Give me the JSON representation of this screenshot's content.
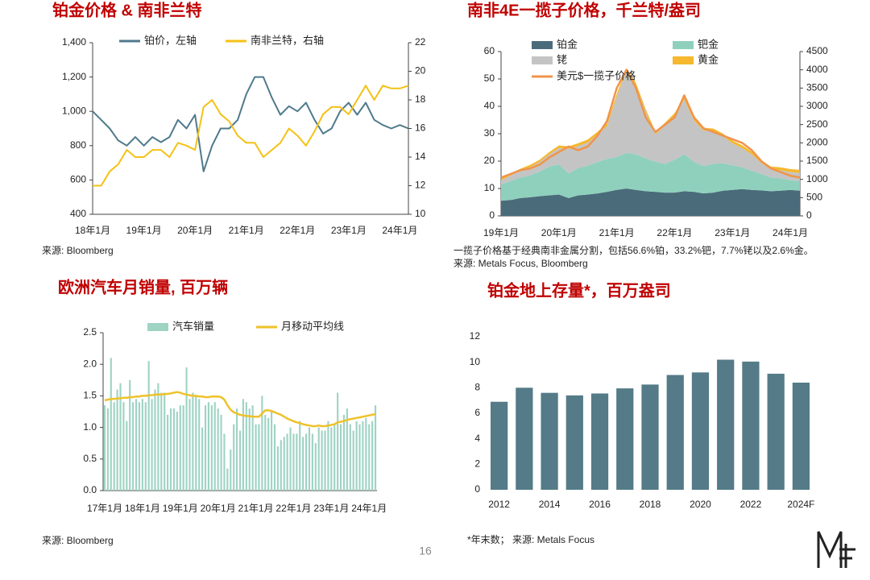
{
  "page": "16",
  "chart_data": [
    {
      "type": "line",
      "title": "铂金价格 & 南非兰特",
      "source": "来源: Bloomberg",
      "categories": [
        "18年1月",
        null,
        null,
        null,
        null,
        null,
        "19年1月",
        null,
        null,
        null,
        null,
        null,
        "20年1月",
        null,
        null,
        null,
        null,
        null,
        "21年1月",
        null,
        null,
        null,
        null,
        null,
        "22年1月",
        null,
        null,
        null,
        null,
        null,
        "23年1月",
        null,
        null,
        null,
        null,
        null,
        "24年1月",
        null
      ],
      "series": [
        {
          "name": "铂价，左轴",
          "color": "#4f7a8c",
          "values": [
            1000,
            950,
            900,
            830,
            800,
            850,
            800,
            850,
            820,
            850,
            950,
            900,
            980,
            650,
            800,
            900,
            900,
            950,
            1100,
            1200,
            1200,
            1080,
            980,
            1030,
            1000,
            1050,
            950,
            870,
            900,
            1000,
            1050,
            980,
            1050,
            950,
            920,
            900,
            920,
            900
          ]
        },
        {
          "name": "南非兰特，右轴",
          "color": "#f5c116",
          "axis": "y2",
          "values": [
            12,
            12,
            13,
            13.5,
            14.5,
            14,
            14,
            14.5,
            14.5,
            14,
            15,
            14.8,
            14.5,
            17.5,
            18,
            17,
            16.5,
            15.5,
            15,
            15,
            14,
            14.5,
            15,
            16,
            15.5,
            14.8,
            15.8,
            17,
            17.5,
            17.5,
            17,
            18,
            19,
            18,
            19,
            18.8,
            18.8,
            19
          ]
        }
      ],
      "ylim": [
        400,
        1400
      ],
      "yticks": [
        400,
        600,
        800,
        {
          "value": 1000,
          "label": "1,000"
        },
        {
          "value": 1200,
          "label": "1,200"
        },
        {
          "value": 1400,
          "label": "1,400"
        }
      ],
      "y2lim": [
        10,
        22
      ],
      "y2ticks": [
        10,
        12,
        14,
        16,
        18,
        20,
        22
      ]
    },
    {
      "type": "area",
      "title": "南非4E一揽子价格，千兰特/盎司",
      "note": "一揽子价格基于经典南非金属分割，包括56.6%铂，33.2%钯，7.7%铑以及2.6%金。",
      "source": "来源: Metals Focus, Bloomberg",
      "categories": [
        "19年1月",
        null,
        null,
        null,
        null,
        null,
        "20年1月",
        null,
        null,
        null,
        null,
        null,
        "21年1月",
        null,
        null,
        null,
        null,
        null,
        "22年1月",
        null,
        null,
        null,
        null,
        null,
        "23年1月",
        null,
        null,
        null,
        null,
        null,
        "24年1月",
        null
      ],
      "series": [
        {
          "name": "铂金",
          "color": "#4a6b7a",
          "values": [
            5.5,
            5.8,
            6.5,
            6.8,
            7.2,
            7.5,
            7.8,
            6.5,
            7.5,
            7.8,
            8.2,
            8.8,
            9.5,
            10,
            9.5,
            9,
            8.8,
            8.5,
            8.5,
            9,
            8.8,
            8.2,
            8.5,
            9.2,
            9.5,
            9.8,
            9.5,
            9.3,
            9,
            9.2,
            9.5,
            9.2
          ]
        },
        {
          "name": "钯金",
          "color": "#8fd0bd",
          "values": [
            6,
            7,
            7.5,
            8,
            9,
            10.5,
            11,
            9,
            10,
            10.5,
            11.5,
            12,
            12,
            13,
            13,
            12,
            11,
            10.5,
            12,
            13.5,
            11,
            10,
            10.5,
            10,
            9,
            8,
            7,
            6,
            5,
            4.5,
            3.5,
            3.5
          ]
        },
        {
          "name": "铑",
          "color": "#c4c4c4",
          "values": [
            1.5,
            2,
            2.5,
            3,
            3.5,
            4.5,
            6,
            9,
            8,
            8.5,
            10,
            12,
            22,
            30,
            25,
            17,
            10,
            14,
            16,
            20,
            15,
            13,
            12,
            10,
            8,
            7,
            6,
            4,
            3,
            3,
            3,
            3
          ]
        },
        {
          "name": "黄金",
          "color": "#f5b82e",
          "values": [
            0.6,
            0.6,
            0.7,
            0.8,
            0.8,
            0.8,
            0.9,
            0.9,
            1,
            1.1,
            1,
            1,
            1,
            1,
            1,
            1,
            1,
            1,
            1,
            1,
            1,
            0.9,
            0.9,
            0.9,
            1,
            1,
            1,
            1,
            1,
            1,
            1.1,
            1.1
          ]
        },
        {
          "name": "美元$一揽子价格",
          "type": "line",
          "axis": "y2",
          "color": "#f0944a",
          "values": [
            1050,
            1150,
            1250,
            1300,
            1400,
            1600,
            1750,
            1900,
            1800,
            1900,
            2200,
            2600,
            3500,
            4000,
            3500,
            2700,
            2300,
            2500,
            2700,
            3300,
            2700,
            2400,
            2300,
            2200,
            2100,
            2000,
            1800,
            1500,
            1300,
            1200,
            1100,
            1050
          ]
        }
      ],
      "ylim": [
        0,
        60
      ],
      "yticks": [
        0,
        10,
        20,
        30,
        40,
        50,
        60
      ],
      "y2lim": [
        0,
        4500
      ],
      "y2ticks": [
        0,
        500,
        1000,
        1500,
        2000,
        2500,
        3000,
        3500,
        4000,
        4500
      ]
    },
    {
      "type": "bar",
      "title": "欧洲汽车月销量, 百万辆",
      "source": "来源: Bloomberg",
      "categories": [
        "17年1月",
        null,
        null,
        null,
        null,
        null,
        null,
        null,
        null,
        null,
        null,
        null,
        "18年1月",
        null,
        null,
        null,
        null,
        null,
        null,
        null,
        null,
        null,
        null,
        null,
        "19年1月",
        null,
        null,
        null,
        null,
        null,
        null,
        null,
        null,
        null,
        null,
        null,
        "20年1月",
        null,
        null,
        null,
        null,
        null,
        null,
        null,
        null,
        null,
        null,
        null,
        "21年1月",
        null,
        null,
        null,
        null,
        null,
        null,
        null,
        null,
        null,
        null,
        null,
        "22年1月",
        null,
        null,
        null,
        null,
        null,
        null,
        null,
        null,
        null,
        null,
        null,
        "23年1月",
        null,
        null,
        null,
        null,
        null,
        null,
        null,
        null,
        null,
        null,
        null,
        "24年1月",
        null,
        null
      ],
      "series": [
        {
          "name": "汽车销量",
          "color": "#9fd3c3",
          "values": [
            1.35,
            1.3,
            2.1,
            1.4,
            1.6,
            1.7,
            1.4,
            1.1,
            1.75,
            1.4,
            1.45,
            1.4,
            1.45,
            1.4,
            2.05,
            1.45,
            1.6,
            1.7,
            1.55,
            1.55,
            1.2,
            1.3,
            1.3,
            1.25,
            1.35,
            1.35,
            1.95,
            1.45,
            1.55,
            1.5,
            1.45,
            1.0,
            1.35,
            1.4,
            1.35,
            1.4,
            1.3,
            1.2,
            0.9,
            0.35,
            0.65,
            1.05,
            1.3,
            0.95,
            1.45,
            1.4,
            1.3,
            1.35,
            1.05,
            1.05,
            1.5,
            1.2,
            1.15,
            1.25,
            1.05,
            0.7,
            0.8,
            0.85,
            0.9,
            1.0,
            0.9,
            0.9,
            1.1,
            0.85,
            0.9,
            1.0,
            0.9,
            0.75,
            1.0,
            0.95,
            0.95,
            1.1,
            1.0,
            1.05,
            1.55,
            1.05,
            1.2,
            1.3,
            1.05,
            0.95,
            1.1,
            1.05,
            1.1,
            1.15,
            1.05,
            1.1,
            1.35
          ]
        },
        {
          "name": "月移动平均线",
          "type": "line",
          "color": "#eec22a",
          "values": [
            1.43,
            1.44,
            1.45,
            1.45,
            1.46,
            1.46,
            1.47,
            1.47,
            1.48,
            1.48,
            1.49,
            1.49,
            1.5,
            1.5,
            1.51,
            1.51,
            1.52,
            1.52,
            1.52,
            1.53,
            1.53,
            1.54,
            1.55,
            1.56,
            1.55,
            1.53,
            1.52,
            1.51,
            1.5,
            1.5,
            1.49,
            1.49,
            1.48,
            1.48,
            1.49,
            1.49,
            1.49,
            1.48,
            1.44,
            1.35,
            1.28,
            1.24,
            1.22,
            1.2,
            1.19,
            1.18,
            1.18,
            1.17,
            1.17,
            1.17,
            1.22,
            1.27,
            1.27,
            1.26,
            1.24,
            1.22,
            1.2,
            1.17,
            1.14,
            1.12,
            1.1,
            1.08,
            1.07,
            1.05,
            1.04,
            1.03,
            1.02,
            1.02,
            1.03,
            1.02,
            1.02,
            1.03,
            1.04,
            1.05,
            1.08,
            1.09,
            1.1,
            1.12,
            1.13,
            1.14,
            1.15,
            1.16,
            1.17,
            1.18,
            1.19,
            1.2,
            1.21
          ]
        }
      ],
      "ylim": [
        0,
        2.5
      ],
      "yticks": [
        {
          "value": 0,
          "label": "0.0"
        },
        0.5,
        {
          "value": 1,
          "label": "1.0"
        },
        1.5,
        {
          "value": 2,
          "label": "2.0"
        },
        2.5
      ]
    },
    {
      "type": "bar",
      "title": "铂金地上存量*，百万盎司",
      "source": "*年末数； 来源: Metals Focus",
      "categories": [
        "2012",
        null,
        "2014",
        null,
        "2016",
        null,
        "2018",
        null,
        "2020",
        null,
        "2022",
        null,
        "2024F"
      ],
      "values": [
        6.9,
        8.0,
        7.6,
        7.4,
        7.55,
        7.95,
        8.25,
        9.0,
        9.2,
        10.2,
        10.05,
        9.1,
        8.4
      ],
      "color": "#547b87",
      "ylim": [
        0,
        12
      ],
      "yticks": [
        0,
        2,
        4,
        6,
        8,
        10,
        12
      ]
    }
  ]
}
